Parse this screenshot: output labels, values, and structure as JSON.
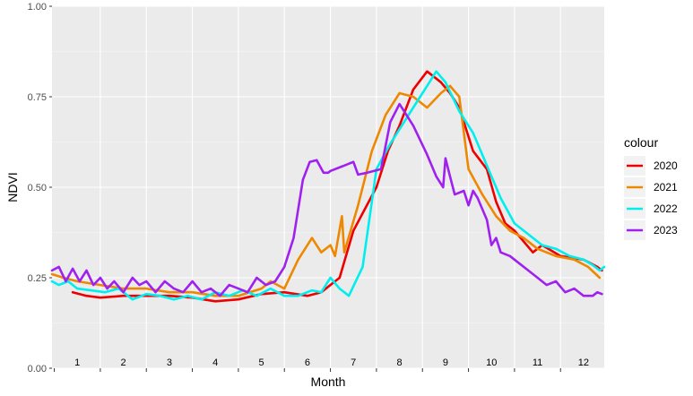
{
  "chart_data": {
    "type": "line",
    "xlabel": "Month",
    "ylabel": "NDVI",
    "ylim": [
      0,
      1
    ],
    "xlim": [
      0.45,
      12.45
    ],
    "y_ticks": [
      "0.00",
      "0.25",
      "0.50",
      "0.75",
      "1.00"
    ],
    "y_tick_values": [
      0,
      0.25,
      0.5,
      0.75,
      1
    ],
    "month_labels": [
      "1",
      "2",
      "3",
      "4",
      "5",
      "6",
      "7",
      "8",
      "9",
      "10",
      "11",
      "12"
    ],
    "grid": true,
    "legend": {
      "title": "colour",
      "position": "right"
    },
    "series": [
      {
        "name": "2020",
        "color": "#ee0000",
        "x": [
          0.9,
          1.2,
          1.5,
          2.0,
          2.5,
          3.0,
          3.5,
          4.0,
          4.5,
          5.0,
          5.5,
          6.0,
          6.3,
          6.7,
          7.0,
          7.5,
          7.75,
          8.0,
          8.3,
          8.6,
          8.9,
          9.1,
          9.3,
          9.6,
          9.9,
          10.1,
          10.3,
          10.5,
          10.7,
          10.9,
          11.1,
          11.5,
          12.0,
          12.3,
          12.4
        ],
        "y": [
          0.21,
          0.2,
          0.195,
          0.2,
          0.2,
          0.2,
          0.195,
          0.185,
          0.19,
          0.205,
          0.21,
          0.2,
          0.21,
          0.25,
          0.38,
          0.5,
          0.6,
          0.67,
          0.77,
          0.82,
          0.79,
          0.76,
          0.72,
          0.6,
          0.55,
          0.46,
          0.4,
          0.38,
          0.35,
          0.32,
          0.34,
          0.31,
          0.3,
          0.28,
          0.27
        ]
      },
      {
        "name": "2021",
        "color": "#ee8800",
        "x": [
          0.45,
          0.7,
          1.0,
          1.5,
          2.0,
          2.5,
          3.0,
          3.5,
          4.0,
          4.5,
          5.0,
          5.2,
          5.5,
          5.8,
          6.1,
          6.3,
          6.5,
          6.6,
          6.75,
          6.8,
          7.1,
          7.4,
          7.7,
          8.0,
          8.3,
          8.6,
          8.9,
          9.1,
          9.3,
          9.5,
          9.8,
          10.1,
          10.4,
          10.7,
          11.0,
          11.4,
          11.8,
          12.1,
          12.35
        ],
        "y": [
          0.26,
          0.25,
          0.24,
          0.23,
          0.22,
          0.22,
          0.21,
          0.21,
          0.2,
          0.2,
          0.22,
          0.24,
          0.22,
          0.3,
          0.36,
          0.32,
          0.34,
          0.31,
          0.42,
          0.32,
          0.45,
          0.6,
          0.7,
          0.76,
          0.75,
          0.72,
          0.76,
          0.78,
          0.75,
          0.55,
          0.48,
          0.42,
          0.38,
          0.36,
          0.33,
          0.31,
          0.3,
          0.28,
          0.25
        ]
      },
      {
        "name": "2022",
        "color": "#00eeee",
        "x": [
          0.45,
          0.6,
          0.8,
          1.0,
          1.3,
          1.6,
          1.9,
          2.2,
          2.5,
          2.8,
          3.1,
          3.4,
          3.7,
          4.0,
          4.3,
          4.6,
          4.9,
          5.2,
          5.5,
          5.8,
          6.1,
          6.3,
          6.5,
          6.7,
          6.9,
          7.2,
          7.5,
          7.8,
          8.1,
          8.4,
          8.6,
          8.8,
          9.0,
          9.3,
          9.6,
          9.9,
          10.2,
          10.5,
          10.8,
          11.1,
          11.4,
          11.7,
          12.0,
          12.2,
          12.35,
          12.45
        ],
        "y": [
          0.24,
          0.23,
          0.24,
          0.22,
          0.215,
          0.21,
          0.22,
          0.19,
          0.205,
          0.2,
          0.19,
          0.2,
          0.19,
          0.21,
          0.2,
          0.215,
          0.2,
          0.22,
          0.2,
          0.2,
          0.215,
          0.21,
          0.25,
          0.22,
          0.2,
          0.28,
          0.55,
          0.62,
          0.68,
          0.74,
          0.78,
          0.82,
          0.79,
          0.71,
          0.65,
          0.56,
          0.47,
          0.4,
          0.37,
          0.34,
          0.33,
          0.31,
          0.3,
          0.285,
          0.27,
          0.28
        ]
      },
      {
        "name": "2023",
        "color": "#a020f0",
        "x": [
          0.45,
          0.6,
          0.75,
          0.9,
          1.05,
          1.2,
          1.35,
          1.5,
          1.65,
          1.8,
          2.0,
          2.2,
          2.35,
          2.5,
          2.7,
          2.9,
          3.1,
          3.3,
          3.5,
          3.7,
          3.9,
          4.1,
          4.3,
          4.5,
          4.7,
          4.9,
          5.1,
          5.3,
          5.5,
          5.7,
          5.9,
          6.05,
          6.2,
          6.35,
          6.45,
          6.5,
          6.8,
          7.0,
          7.1,
          7.3,
          7.6,
          7.8,
          8.0,
          8.3,
          8.6,
          8.8,
          8.95,
          9.0,
          9.1,
          9.2,
          9.4,
          9.5,
          9.6,
          9.7,
          9.9,
          10.0,
          10.1,
          10.2,
          10.4,
          10.6,
          10.8,
          11.0,
          11.2,
          11.4,
          11.6,
          11.8,
          12.0,
          12.2,
          12.3,
          12.4
        ],
        "y": [
          0.27,
          0.28,
          0.24,
          0.275,
          0.24,
          0.27,
          0.23,
          0.25,
          0.22,
          0.24,
          0.21,
          0.25,
          0.23,
          0.24,
          0.21,
          0.24,
          0.22,
          0.21,
          0.24,
          0.21,
          0.22,
          0.2,
          0.23,
          0.22,
          0.21,
          0.25,
          0.23,
          0.24,
          0.28,
          0.36,
          0.52,
          0.57,
          0.575,
          0.54,
          0.54,
          0.545,
          0.56,
          0.57,
          0.535,
          0.54,
          0.55,
          0.68,
          0.73,
          0.67,
          0.59,
          0.53,
          0.5,
          0.58,
          0.53,
          0.48,
          0.49,
          0.45,
          0.49,
          0.47,
          0.41,
          0.34,
          0.36,
          0.32,
          0.31,
          0.29,
          0.27,
          0.25,
          0.23,
          0.24,
          0.21,
          0.22,
          0.2,
          0.2,
          0.21,
          0.205
        ]
      }
    ]
  }
}
